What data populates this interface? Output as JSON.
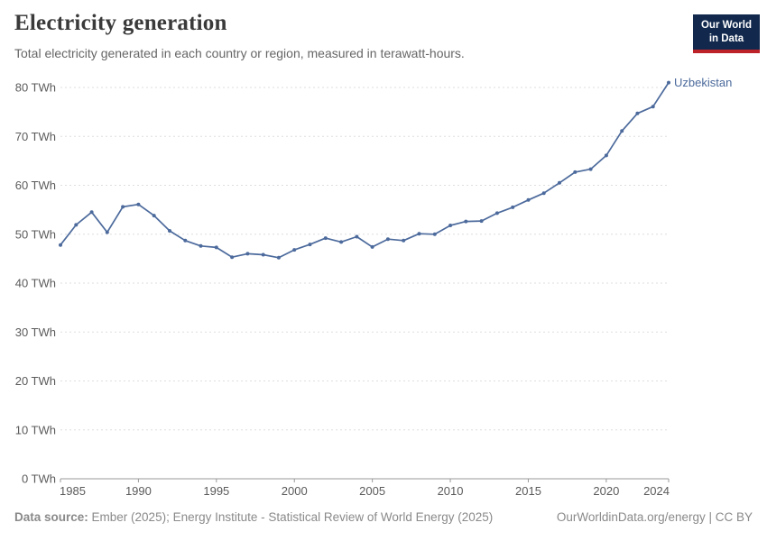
{
  "header": {
    "title": "Electricity generation",
    "subtitle": "Total electricity generated in each country or region, measured in terawatt-hours.",
    "logo": {
      "line1": "Our World",
      "line2": "in Data",
      "bg_color": "#12294d",
      "accent_color": "#be2229"
    }
  },
  "chart_data": {
    "type": "line",
    "title": "Electricity generation",
    "unit": "TWh",
    "grid": "horizontal-dashed",
    "legend": "end-of-line-label",
    "xlim": [
      1985,
      2024
    ],
    "ylim": [
      0,
      80
    ],
    "x_ticks": [
      1985,
      1990,
      1995,
      2000,
      2005,
      2010,
      2015,
      2020,
      2024
    ],
    "y_ticks": [
      0,
      10,
      20,
      30,
      40,
      50,
      60,
      70,
      80
    ],
    "y_tick_suffix": " TWh",
    "x": [
      1985,
      1986,
      1987,
      1988,
      1989,
      1990,
      1991,
      1992,
      1993,
      1994,
      1995,
      1996,
      1997,
      1998,
      1999,
      2000,
      2001,
      2002,
      2003,
      2004,
      2005,
      2006,
      2007,
      2008,
      2009,
      2010,
      2011,
      2012,
      2013,
      2014,
      2015,
      2016,
      2017,
      2018,
      2019,
      2020,
      2021,
      2022,
      2023,
      2024
    ],
    "series": [
      {
        "name": "Uzbekistan",
        "color": "#4C6A9C",
        "values": [
          47.8,
          51.9,
          54.5,
          50.4,
          55.6,
          56.1,
          53.8,
          50.7,
          48.7,
          47.6,
          47.3,
          45.3,
          46.0,
          45.8,
          45.2,
          46.8,
          47.9,
          49.2,
          48.4,
          49.5,
          47.4,
          49.0,
          48.7,
          50.1,
          50.0,
          51.8,
          52.6,
          52.7,
          54.3,
          55.5,
          57.0,
          58.4,
          60.5,
          62.7,
          63.3,
          66.1,
          71.1,
          74.7,
          76.1,
          81.0
        ]
      }
    ],
    "colors": {
      "gridline": "#dedede",
      "axis": "#999999",
      "tick_text": "#5b5b5b"
    }
  },
  "footer": {
    "source_label": "Data source:",
    "source_text": " Ember (2025); Energy Institute - Statistical Review of World Energy (2025)",
    "credit": "OurWorldinData.org/energy | CC BY"
  }
}
